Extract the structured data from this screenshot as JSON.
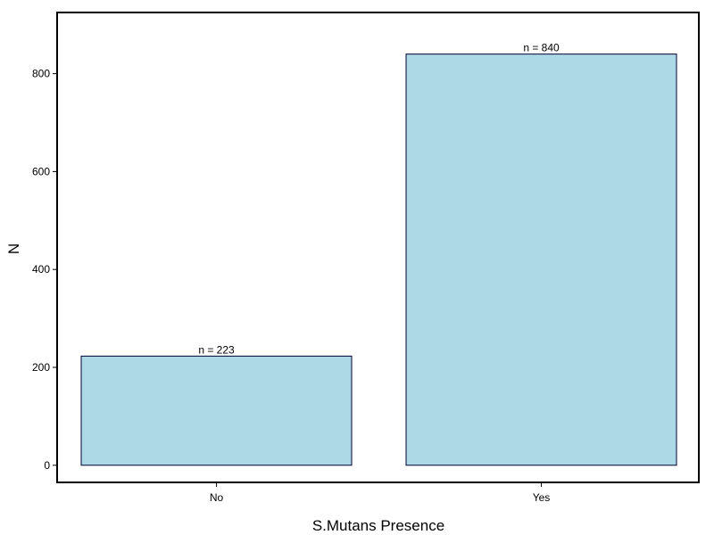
{
  "chart_data": {
    "type": "bar",
    "categories": [
      "No",
      "Yes"
    ],
    "values": [
      223,
      840
    ],
    "data_labels": [
      "n =  223",
      "n =  840"
    ],
    "xlabel": "S.Mutans Presence",
    "ylabel": "N",
    "ylim": [
      -35,
      925
    ],
    "yticks": [
      0,
      200,
      400,
      600,
      800
    ],
    "ytick_labels": [
      "0",
      "200",
      "400",
      "600",
      "800"
    ],
    "grid": false,
    "legend": "none",
    "colors": {
      "bar_fill": "#add8e6",
      "bar_stroke": "#000033",
      "frame": "#000000"
    }
  }
}
